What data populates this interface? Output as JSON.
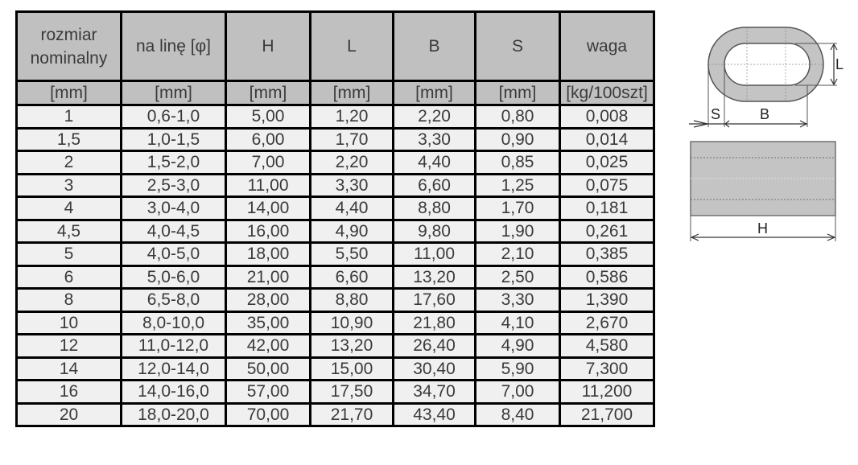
{
  "table": {
    "headers": [
      "rozmiar nominalny",
      "na linę [φ]",
      "H",
      "L",
      "B",
      "S",
      "waga"
    ],
    "units": [
      "[mm]",
      "[mm]",
      "[mm]",
      "[mm]",
      "[mm]",
      "[mm]",
      "[kg/100szt]"
    ],
    "rows": [
      [
        "1",
        "0,6-1,0",
        "5,00",
        "1,20",
        "2,20",
        "0,80",
        "0,008"
      ],
      [
        "1,5",
        "1,0-1,5",
        "6,00",
        "1,70",
        "3,30",
        "0,90",
        "0,014"
      ],
      [
        "2",
        "1,5-2,0",
        "7,00",
        "2,20",
        "4,40",
        "0,85",
        "0,025"
      ],
      [
        "3",
        "2,5-3,0",
        "11,00",
        "3,30",
        "6,60",
        "1,25",
        "0,075"
      ],
      [
        "4",
        "3,0-4,0",
        "14,00",
        "4,40",
        "8,80",
        "1,70",
        "0,181"
      ],
      [
        "4,5",
        "4,0-4,5",
        "16,00",
        "4,90",
        "9,80",
        "1,90",
        "0,261"
      ],
      [
        "5",
        "4,0-5,0",
        "18,00",
        "5,50",
        "11,00",
        "2,10",
        "0,385"
      ],
      [
        "6",
        "5,0-6,0",
        "21,00",
        "6,60",
        "13,20",
        "2,50",
        "0,586"
      ],
      [
        "8",
        "6,5-8,0",
        "28,00",
        "8,80",
        "17,60",
        "3,30",
        "1,390"
      ],
      [
        "10",
        "8,0-10,0",
        "35,00",
        "10,90",
        "21,80",
        "4,10",
        "2,670"
      ],
      [
        "12",
        "11,0-12,0",
        "42,00",
        "13,20",
        "26,40",
        "4,90",
        "4,580"
      ],
      [
        "14",
        "12,0-14,0",
        "50,00",
        "15,00",
        "30,40",
        "5,90",
        "7,300"
      ],
      [
        "16",
        "14,0-16,0",
        "57,00",
        "17,50",
        "34,70",
        "7,00",
        "11,200"
      ],
      [
        "20",
        "18,0-20,0",
        "70,00",
        "21,70",
        "43,40",
        "8,40",
        "21,700"
      ]
    ]
  },
  "diagram": {
    "labels": {
      "L": "L",
      "S": "S",
      "B": "B",
      "H": "H"
    },
    "colors": {
      "fill": "#c4c4c4",
      "stroke": "#555555"
    }
  }
}
